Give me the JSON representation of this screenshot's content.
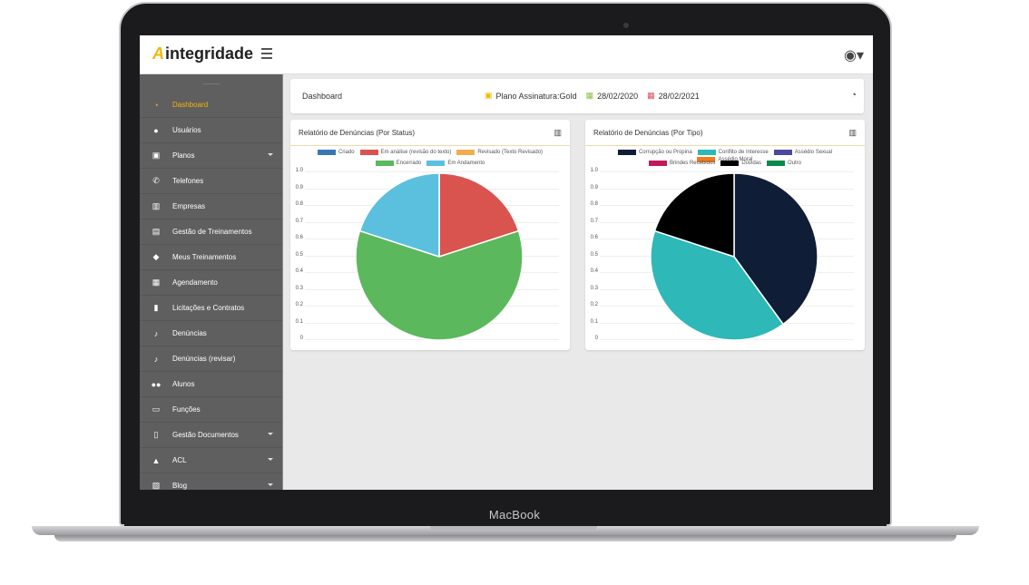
{
  "device": {
    "brand": "MacBook"
  },
  "app": {
    "logo_a": "A",
    "logo_text": "integridade"
  },
  "sidebar": {
    "items": [
      {
        "label": "Dashboard",
        "icon": "gauge-icon",
        "active": true
      },
      {
        "label": "Usuários",
        "icon": "user-icon"
      },
      {
        "label": "Planos",
        "icon": "briefcase-icon",
        "caret": true
      },
      {
        "label": "Telefones",
        "icon": "phone-icon"
      },
      {
        "label": "Empresas",
        "icon": "building-icon"
      },
      {
        "label": "Gestão de Treinamentos",
        "icon": "box-icon"
      },
      {
        "label": "Meus Treinamentos",
        "icon": "cubes-icon"
      },
      {
        "label": "Agendamento",
        "icon": "calendar-icon"
      },
      {
        "label": "Licitações e Contratos",
        "icon": "file-icon"
      },
      {
        "label": "Denúncias",
        "icon": "microphone-icon"
      },
      {
        "label": "Denúncias (revisar)",
        "icon": "microphone-icon"
      },
      {
        "label": "Alunos",
        "icon": "users-icon"
      },
      {
        "label": "Funções",
        "icon": "id-card-icon"
      },
      {
        "label": "Gestão Documentos",
        "icon": "document-icon",
        "caret": true
      },
      {
        "label": "ACL",
        "icon": "lock-icon",
        "caret": true
      },
      {
        "label": "Blog",
        "icon": "blog-icon",
        "caret": true
      }
    ]
  },
  "header": {
    "title": "Dashboard",
    "plan_label": "Plano Assinatura:Gold",
    "start_date": "28/02/2020",
    "end_date": "28/02/2021"
  },
  "colors": {
    "accent": "#f2b705",
    "sidebar": "#5f5f5f"
  },
  "chart_data": [
    {
      "type": "pie",
      "title": "Relatório de Denúncias (Por Status)",
      "categories": [
        "Criado",
        "Em análise (revisão do texto)",
        "Revisado (Texto Revisado)",
        "Encerrado",
        "Em Andamento"
      ],
      "colors": [
        "#3a76b7",
        "#d9534f",
        "#f0ad4e",
        "#5cb85c",
        "#5bc0de"
      ],
      "values": [
        0,
        2,
        0,
        6,
        2
      ],
      "axis_ticks": [
        "1.0",
        "0.9",
        "0.8",
        "0.7",
        "0.6",
        "0.5",
        "0.4",
        "0.3",
        "0.2",
        "0.1",
        "0"
      ],
      "legend": "top"
    },
    {
      "type": "pie",
      "title": "Relatório de Denúncias (Por Tipo)",
      "categories": [
        "Corrupção ou Propina",
        "Conflito de Interesse",
        "Assédio Sexual",
        "Assédio Moral",
        "Brindes Recebidos",
        "Dúvidas",
        "Outro"
      ],
      "colors": [
        "#0f1e36",
        "#2eb8b8",
        "#4a4a9c",
        "#f07c1e",
        "#c2185b",
        "#000000",
        "#0a8a4a"
      ],
      "values": [
        4,
        4,
        0,
        0,
        0,
        2,
        0
      ],
      "axis_ticks": [
        "1.0",
        "0.9",
        "0.8",
        "0.7",
        "0.6",
        "0.5",
        "0.4",
        "0.3",
        "0.2",
        "0.1",
        "0"
      ],
      "legend": "top"
    }
  ]
}
